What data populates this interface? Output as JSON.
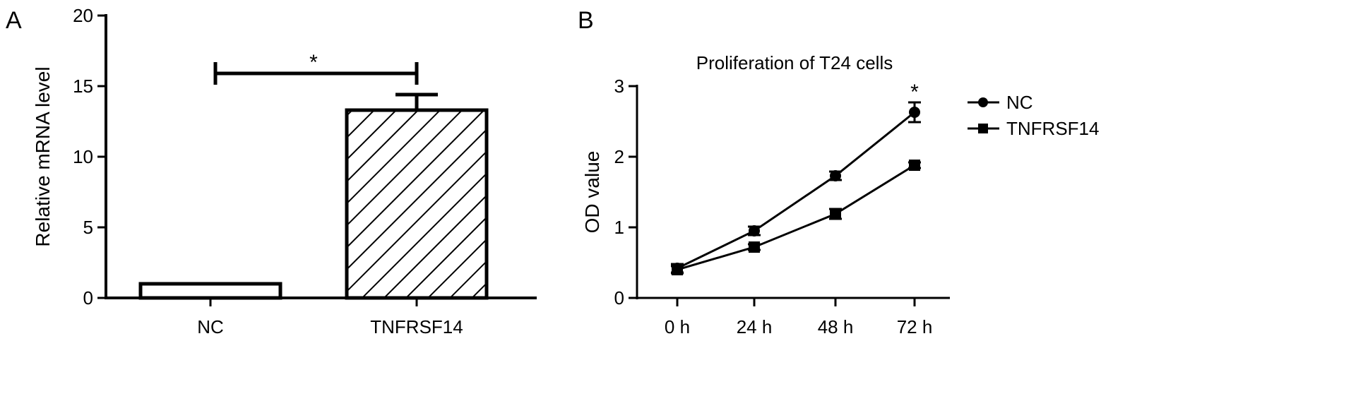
{
  "chart_data": [
    {
      "panel_label": "A",
      "type": "bar",
      "title": "",
      "xlabel": "",
      "ylabel": "Relative mRNA level",
      "ylim": [
        0,
        20
      ],
      "yticks": [
        "0",
        "5",
        "10",
        "15",
        "20"
      ],
      "categories": [
        "NC",
        "TNFRSF14"
      ],
      "values": [
        1.0,
        13.3
      ],
      "error": [
        0,
        1.1
      ],
      "fill_patterns": [
        "none",
        "diagonal-hatch"
      ],
      "significance": {
        "between": [
          "NC",
          "TNFRSF14"
        ],
        "label": "*"
      },
      "grid": false
    },
    {
      "panel_label": "B",
      "type": "line",
      "title": "Proliferation of T24 cells",
      "xlabel": "",
      "ylabel": "OD value",
      "ylim": [
        0,
        3
      ],
      "yticks": [
        "0",
        "1",
        "2",
        "3"
      ],
      "categories": [
        "0 h",
        "24 h",
        "48 h",
        "72 h"
      ],
      "series": [
        {
          "name": "NC",
          "values": [
            0.42,
            0.95,
            1.73,
            2.63
          ],
          "error": [
            0.06,
            0.06,
            0.06,
            0.14
          ],
          "marker": "circle"
        },
        {
          "name": "TNFRSF14",
          "values": [
            0.4,
            0.72,
            1.19,
            1.88
          ],
          "error": [
            0.05,
            0.04,
            0.07,
            0.04
          ],
          "marker": "square"
        }
      ],
      "significance": {
        "at": "72 h",
        "label": "*"
      },
      "legend": "right",
      "grid": false
    }
  ]
}
